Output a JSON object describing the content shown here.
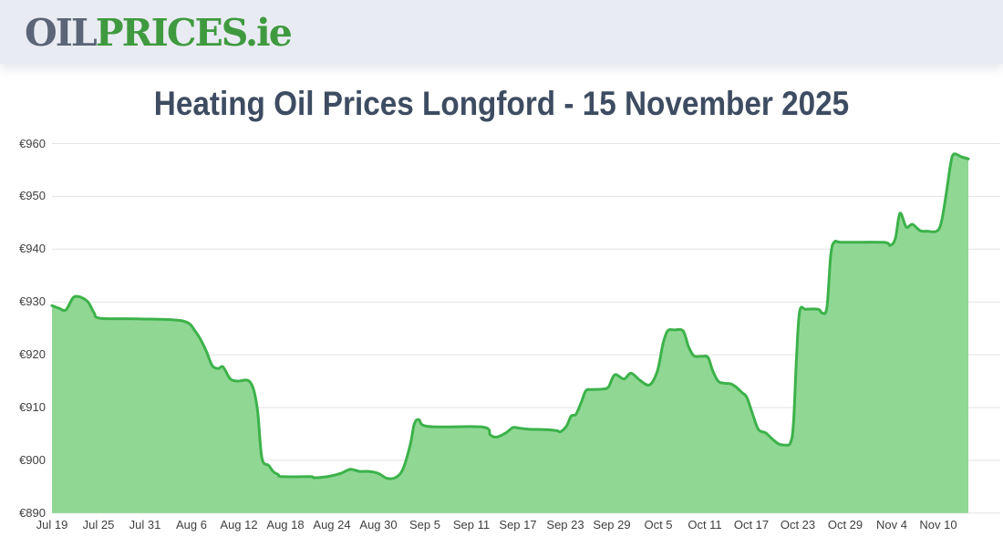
{
  "header": {
    "logo": {
      "oil": "OIL",
      "prices": "PRICES",
      "ie": ".ie"
    }
  },
  "page_title": "Heating Oil Prices Longford - 15 November 2025",
  "colors": {
    "header_bg": "#e9ebf3",
    "logo_oil": "#5b6577",
    "logo_green": "#3f9a3f",
    "title": "#3e4c61",
    "line": "#3cb24a",
    "fill": "#90d794",
    "grid": "#e3e3e3",
    "axis_text": "#3f3f3f",
    "page_bg": "#ffffff"
  },
  "chart_data": {
    "type": "area",
    "title": "Heating Oil Prices Longford - 15 November 2025",
    "xlabel": "",
    "ylabel": "",
    "currency_prefix": "€",
    "ylim": [
      890,
      960
    ],
    "xlim_days": [
      0,
      122
    ],
    "grid": "horizontal",
    "legend": "none",
    "y_ticks": [
      960,
      950,
      940,
      930,
      920,
      910,
      900,
      890
    ],
    "x_tick_days": [
      0,
      6,
      12,
      18,
      24,
      30,
      36,
      42,
      48,
      54,
      60,
      66,
      72,
      78,
      84,
      90,
      96,
      102,
      108,
      114
    ],
    "x_tick_labels": [
      "Jul 19",
      "Jul 25",
      "Jul 31",
      "Aug 6",
      "Aug 12",
      "Aug 18",
      "Aug 24",
      "Aug 30",
      "Sep 5",
      "Sep 11",
      "Sep 17",
      "Sep 23",
      "Sep 29",
      "Oct 5",
      "Oct 11",
      "Oct 17",
      "Oct 23",
      "Oct 29",
      "Nov 4",
      "Nov 10"
    ],
    "series": [
      {
        "points_day_price": [
          [
            0,
            929.3
          ],
          [
            0.9,
            928.8
          ],
          [
            1.8,
            928.5
          ],
          [
            2.9,
            931.0
          ],
          [
            4.5,
            930.2
          ],
          [
            5.4,
            928.0
          ],
          [
            6.2,
            926.9
          ],
          [
            10.9,
            926.8
          ],
          [
            16.8,
            926.4
          ],
          [
            18.5,
            924.3
          ],
          [
            19.7,
            921.2
          ],
          [
            20.6,
            918.0
          ],
          [
            21.4,
            917.4
          ],
          [
            22.0,
            917.7
          ],
          [
            22.9,
            915.5
          ],
          [
            23.8,
            915.0
          ],
          [
            25.5,
            914.8
          ],
          [
            26.4,
            910.0
          ],
          [
            27.0,
            900.5
          ],
          [
            27.9,
            899.0
          ],
          [
            28.5,
            897.8
          ],
          [
            29.1,
            897.3
          ],
          [
            29.6,
            896.9
          ],
          [
            33.2,
            896.9
          ],
          [
            33.7,
            896.7
          ],
          [
            34.9,
            896.8
          ],
          [
            36.1,
            897.1
          ],
          [
            37.3,
            897.6
          ],
          [
            38.4,
            898.3
          ],
          [
            39.6,
            897.9
          ],
          [
            40.8,
            897.9
          ],
          [
            42.0,
            897.5
          ],
          [
            43.1,
            896.6
          ],
          [
            44.3,
            896.8
          ],
          [
            45.2,
            898.5
          ],
          [
            46.1,
            903.0
          ],
          [
            46.6,
            906.8
          ],
          [
            47.2,
            907.7
          ],
          [
            48.4,
            906.4
          ],
          [
            55.4,
            906.3
          ],
          [
            56.4,
            904.8
          ],
          [
            57.2,
            904.4
          ],
          [
            58.4,
            905.2
          ],
          [
            59.3,
            906.2
          ],
          [
            60.1,
            906.1
          ],
          [
            61.3,
            905.9
          ],
          [
            63.6,
            905.8
          ],
          [
            65.0,
            905.6
          ],
          [
            65.4,
            905.4
          ],
          [
            66.2,
            906.5
          ],
          [
            66.8,
            908.4
          ],
          [
            67.4,
            908.7
          ],
          [
            68.1,
            911.0
          ],
          [
            68.7,
            913.2
          ],
          [
            69.5,
            913.4
          ],
          [
            70.9,
            913.5
          ],
          [
            71.6,
            913.9
          ],
          [
            72.4,
            916.2
          ],
          [
            73.6,
            915.4
          ],
          [
            74.5,
            916.5
          ],
          [
            75.7,
            915.1
          ],
          [
            76.9,
            914.3
          ],
          [
            77.9,
            917.0
          ],
          [
            78.6,
            922.0
          ],
          [
            79.2,
            924.5
          ],
          [
            80.1,
            924.7
          ],
          [
            81.2,
            924.5
          ],
          [
            81.9,
            921.5
          ],
          [
            82.6,
            919.8
          ],
          [
            83.6,
            919.7
          ],
          [
            84.4,
            919.5
          ],
          [
            85.0,
            917.0
          ],
          [
            85.7,
            915.0
          ],
          [
            86.5,
            914.6
          ],
          [
            87.3,
            914.5
          ],
          [
            88.0,
            913.9
          ],
          [
            88.8,
            912.8
          ],
          [
            89.4,
            911.9
          ],
          [
            90.2,
            908.5
          ],
          [
            90.9,
            905.8
          ],
          [
            91.8,
            905.2
          ],
          [
            92.7,
            904.0
          ],
          [
            93.5,
            903.1
          ],
          [
            94.3,
            902.9
          ],
          [
            95.0,
            903.3
          ],
          [
            95.4,
            907.0
          ],
          [
            95.8,
            920.0
          ],
          [
            96.2,
            928.3
          ],
          [
            97.0,
            928.6
          ],
          [
            98.6,
            928.6
          ],
          [
            99.1,
            927.9
          ],
          [
            99.7,
            929.0
          ],
          [
            100.2,
            939.0
          ],
          [
            100.7,
            941.4
          ],
          [
            101.7,
            941.3
          ],
          [
            107.0,
            941.3
          ],
          [
            107.8,
            940.7
          ],
          [
            108.5,
            942.0
          ],
          [
            109.1,
            946.8
          ],
          [
            109.9,
            944.2
          ],
          [
            110.7,
            944.7
          ],
          [
            111.7,
            943.5
          ],
          [
            112.6,
            943.4
          ],
          [
            113.8,
            943.4
          ],
          [
            114.4,
            945.0
          ],
          [
            115.0,
            950.0
          ],
          [
            115.6,
            956.0
          ],
          [
            116.0,
            958.0
          ],
          [
            117.0,
            957.5
          ],
          [
            117.9,
            957.1
          ]
        ]
      }
    ]
  }
}
